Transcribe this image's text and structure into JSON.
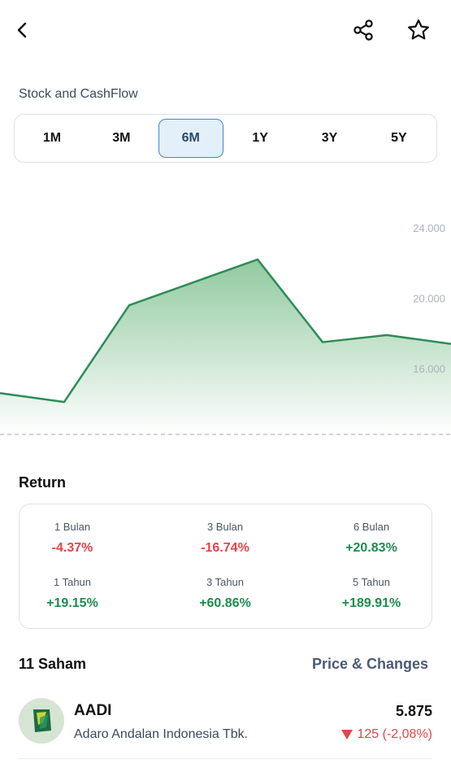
{
  "header": {
    "back_icon": "chevron-left-icon",
    "share_icon": "share-icon",
    "favorite_icon": "star-icon"
  },
  "section_title": "Stock and CashFlow",
  "periods": [
    "1M",
    "3M",
    "6M",
    "1Y",
    "3Y",
    "5Y"
  ],
  "selected_period": "6M",
  "chart_data": {
    "type": "area",
    "y_ticks": [
      "24.000",
      "20.000",
      "16.000"
    ],
    "y_tick_values": [
      24000,
      20000,
      16000
    ],
    "values": [
      14600,
      14100,
      19600,
      20900,
      22200,
      17500,
      17900,
      17400
    ],
    "ylim": [
      12000,
      24500
    ],
    "line_color": "#2e8b57",
    "fill_color": "#9fd0ac",
    "grid": false
  },
  "returns": {
    "title": "Return",
    "items": [
      {
        "label": "1 Bulan",
        "value": "-4.37%",
        "sign": "neg"
      },
      {
        "label": "3 Bulan",
        "value": "-16.74%",
        "sign": "neg"
      },
      {
        "label": "6 Bulan",
        "value": "+20.83%",
        "sign": "pos"
      },
      {
        "label": "1 Tahun",
        "value": "+19.15%",
        "sign": "pos"
      },
      {
        "label": "3 Tahun",
        "value": "+60.86%",
        "sign": "pos"
      },
      {
        "label": "5 Tahun",
        "value": "+189.91%",
        "sign": "pos"
      }
    ]
  },
  "holdings": {
    "title": "11 Saham",
    "sort_label": "Price & Changes",
    "stocks": [
      {
        "ticker": "AADI",
        "name": "Adaro Andalan Indonesia Tbk.",
        "price": "5.875",
        "change": "125 (-2,08%)",
        "direction_icon": "triangle-down-icon"
      }
    ]
  },
  "colors": {
    "negative": "#e2454a",
    "positive": "#1e8c4e",
    "accent": "#3a86d6"
  }
}
